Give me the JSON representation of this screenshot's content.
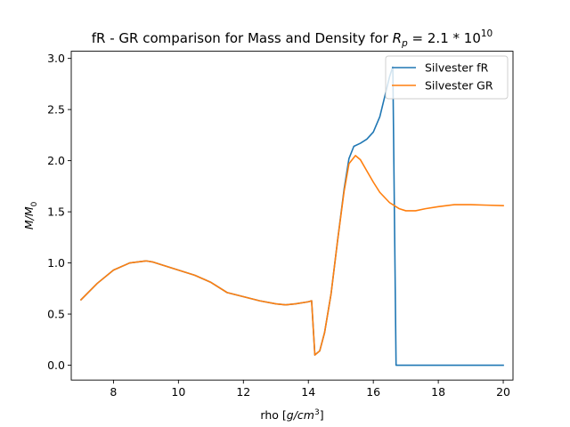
{
  "chart_data": {
    "type": "line",
    "title_prefix": "fR - GR comparison for Mass and Density  for ",
    "title_math": "R_p = 2.1 * 10^10",
    "title_math_parts": [
      "R",
      "p",
      " = 2.1 * 10",
      "10"
    ],
    "xlabel": "rho [g/cm^3]",
    "xlabel_parts": [
      "rho [",
      "g",
      "/",
      "cm",
      "3",
      "]"
    ],
    "ylabel": "M/M_0",
    "ylabel_parts": [
      "M",
      "/",
      "M",
      "0"
    ],
    "xlim": [
      6.7,
      20.3
    ],
    "ylim": [
      -0.145,
      3.07
    ],
    "xticks": [
      8,
      10,
      12,
      14,
      16,
      18,
      20
    ],
    "xtick_labels": [
      "8",
      "10",
      "12",
      "14",
      "16",
      "18",
      "20"
    ],
    "yticks": [
      0.0,
      0.5,
      1.0,
      1.5,
      2.0,
      2.5,
      3.0
    ],
    "ytick_labels": [
      "0.0",
      "0.5",
      "1.0",
      "1.5",
      "2.0",
      "2.5",
      "3.0"
    ],
    "grid": false,
    "legend_position": "top-right",
    "series": [
      {
        "name": "Silvester fR",
        "color": "#1f77b4",
        "x": [
          7.0,
          7.5,
          8.0,
          8.5,
          9.0,
          9.2,
          9.5,
          10.0,
          10.5,
          11.0,
          11.5,
          12.0,
          12.5,
          13.0,
          13.3,
          13.6,
          14.0,
          14.1,
          14.2,
          14.35,
          14.5,
          14.7,
          14.9,
          15.1,
          15.25,
          15.4,
          15.6,
          15.8,
          16.0,
          16.2,
          16.4,
          16.5,
          16.6,
          16.7,
          17.0,
          18.0,
          19.0,
          20.0
        ],
        "y": [
          0.64,
          0.8,
          0.93,
          1.0,
          1.02,
          1.01,
          0.98,
          0.93,
          0.88,
          0.81,
          0.71,
          0.67,
          0.63,
          0.6,
          0.59,
          0.6,
          0.62,
          0.63,
          0.1,
          0.14,
          0.32,
          0.7,
          1.22,
          1.72,
          2.02,
          2.14,
          2.17,
          2.21,
          2.28,
          2.43,
          2.69,
          2.82,
          2.92,
          0.0,
          0.0,
          0.0,
          0.0,
          0.0
        ]
      },
      {
        "name": "Silvester GR",
        "color": "#ff7f0e",
        "x": [
          7.0,
          7.5,
          8.0,
          8.5,
          9.0,
          9.2,
          9.5,
          10.0,
          10.5,
          11.0,
          11.5,
          12.0,
          12.5,
          13.0,
          13.3,
          13.6,
          14.0,
          14.1,
          14.2,
          14.35,
          14.5,
          14.7,
          14.9,
          15.1,
          15.25,
          15.4,
          15.45,
          15.6,
          15.8,
          16.0,
          16.2,
          16.5,
          16.8,
          17.0,
          17.3,
          17.6,
          18.0,
          18.5,
          19.0,
          19.5,
          20.0
        ],
        "y": [
          0.64,
          0.8,
          0.93,
          1.0,
          1.02,
          1.01,
          0.98,
          0.93,
          0.88,
          0.81,
          0.71,
          0.67,
          0.63,
          0.6,
          0.59,
          0.6,
          0.62,
          0.63,
          0.1,
          0.14,
          0.32,
          0.7,
          1.22,
          1.7,
          1.97,
          2.03,
          2.05,
          2.01,
          1.9,
          1.79,
          1.69,
          1.59,
          1.53,
          1.51,
          1.51,
          1.53,
          1.55,
          1.57,
          1.57,
          1.565,
          1.56
        ]
      }
    ]
  }
}
